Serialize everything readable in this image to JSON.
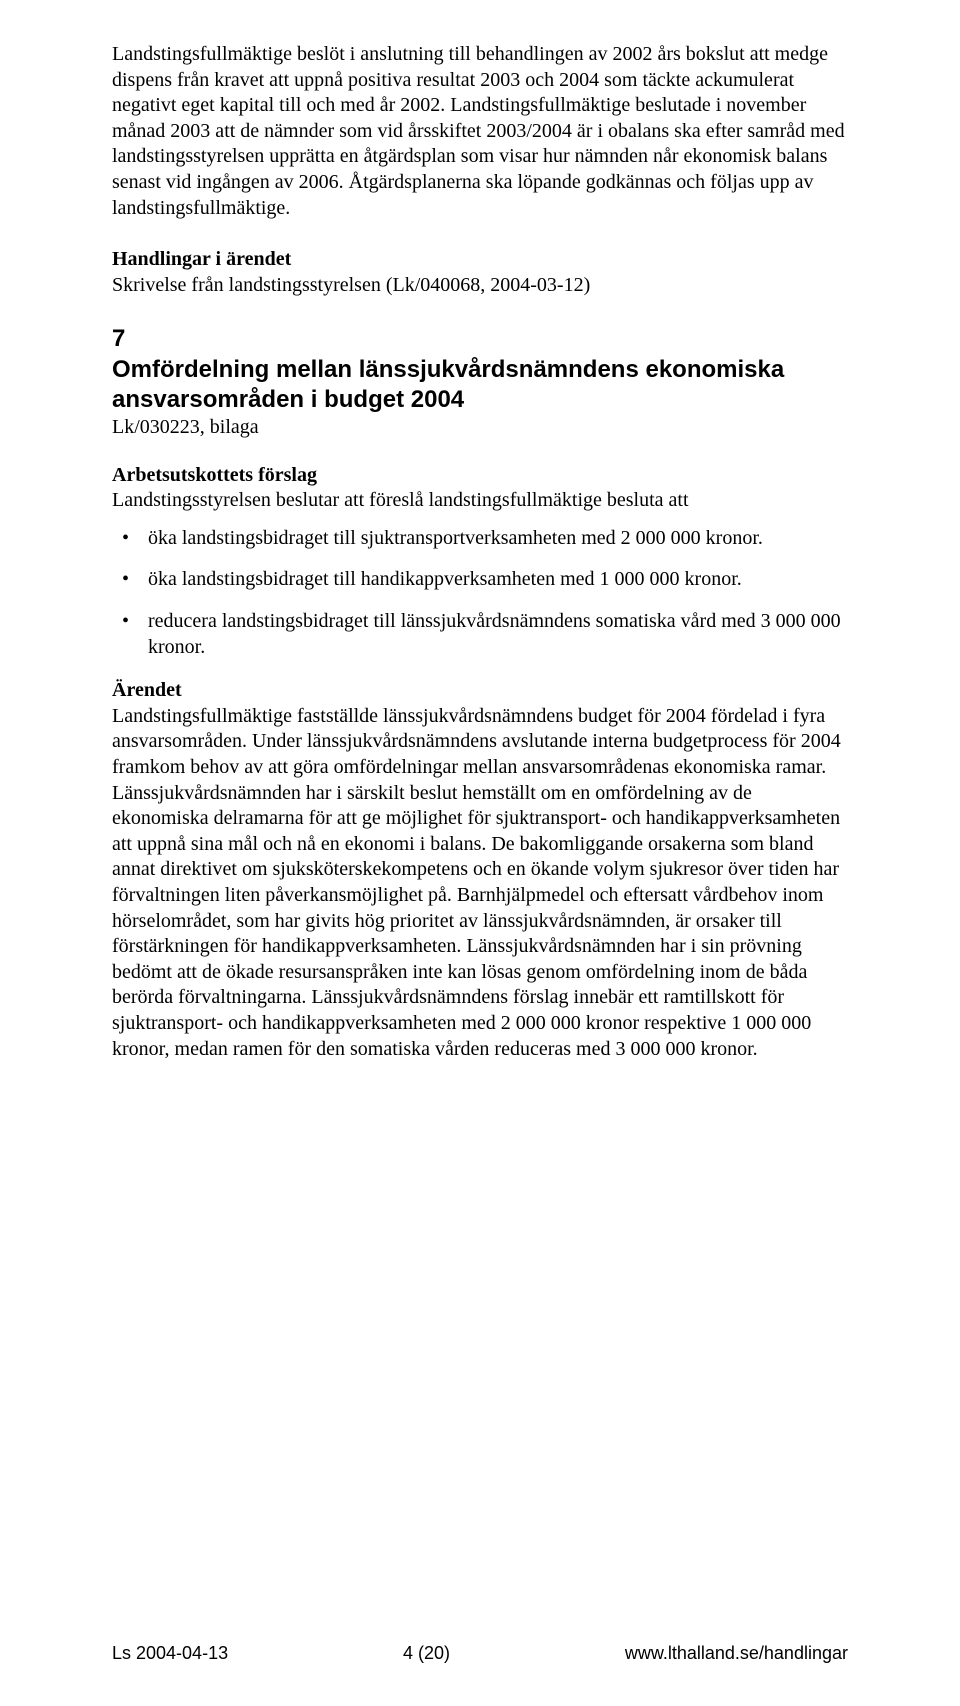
{
  "para1": "Landstingsfullmäktige beslöt i anslutning till behandlingen av 2002 års bokslut att medge dispens från kravet att uppnå positiva resultat 2003 och 2004 som täckte ackumulerat negativt eget kapital till och med år 2002. Landstingsfullmäktige beslutade i november månad 2003 att de nämnder som vid årsskiftet 2003/2004 är i obalans ska efter samråd med landstingsstyrelsen upprätta en åtgärdsplan som visar hur nämnden når ekonomisk balans senast vid ingången av 2006. Åtgärdsplanerna ska löpande godkännas och följas upp av landstingsfullmäktige.",
  "handlingar1_head": "Handlingar i ärendet",
  "handlingar1_body": "Skrivelse från landstingsstyrelsen (Lk/040068, 2004-03-12)",
  "item7_num": "7",
  "item7_title": "Omfördelning mellan länssjukvårdsnämndens ekonomiska ansvarsområden i budget 2004",
  "item7_ref": "Lk/030223, bilaga",
  "au_head": "Arbetsutskottets förslag",
  "au_body": "Landstingsstyrelsen beslutar att föreslå landstingsfullmäktige besluta att",
  "bullets": [
    "öka landstingsbidraget till sjuktransportverksamheten med 2 000 000 kronor.",
    "öka landstingsbidraget till handikappverksamheten med 1 000 000 kronor.",
    "reducera landstingsbidraget till länssjukvårdsnämndens somatiska vård med 3 000 000 kronor."
  ],
  "arendet_head": "Ärendet",
  "arendet_body": "Landstingsfullmäktige fastställde länssjukvårdsnämndens budget för 2004 fördelad i fyra ansvarsområden. Under länssjukvårdsnämndens avslutande interna budgetprocess för 2004 framkom behov av att göra omfördelningar mellan ansvarsområdenas ekonomiska ramar. Länssjukvårdsnämnden har i särskilt beslut hemställt om en omfördelning av de ekonomiska delramarna för att ge möjlighet för sjuktransport- och handikappverksamheten att uppnå sina mål och nå en ekonomi i balans. De bakomliggande orsakerna som bland annat direktivet om sjuksköterskekompetens och en ökande volym sjukresor över tiden har förvaltningen liten påverkansmöjlighet på. Barnhjälpmedel och eftersatt vårdbehov inom hörselområdet, som har givits hög prioritet av länssjukvårdsnämnden, är orsaker till förstärkningen för handikappverksamheten. Länssjukvårdsnämnden har i sin prövning bedömt att de ökade resursanspråken inte kan lösas genom omfördelning inom de båda berörda förvaltningarna. Länssjukvårdsnämndens förslag innebär ett ramtillskott för sjuktransport- och handikappverksamheten med 2 000 000 kronor respektive 1 000 000 kronor, medan ramen för den somatiska vården reduceras med 3 000 000 kronor.",
  "footer_left": "Ls 2004-04-13",
  "footer_center": "4 (20)",
  "footer_right": "www.lthalland.se/handlingar"
}
